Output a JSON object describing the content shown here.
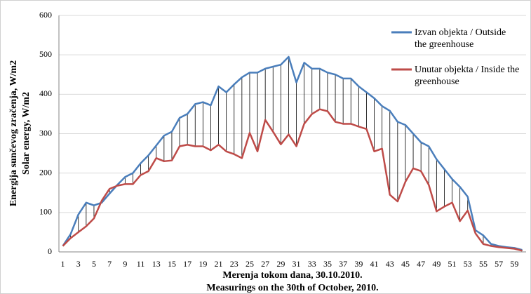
{
  "chart_data": {
    "type": "line",
    "y_label": [
      "Energija sunčevog zračenja, W/m2",
      "Solar energy, W/m2"
    ],
    "x_label": [
      "Merenja tokom dana, 30.10.2010.",
      "Measurings on the 30th of October, 2010."
    ],
    "categories": [
      "1",
      null,
      "3",
      null,
      "5",
      null,
      "7",
      null,
      "9",
      null,
      "11",
      null,
      "13",
      null,
      "15",
      null,
      "17",
      null,
      "19",
      null,
      "21",
      null,
      "23",
      null,
      "25",
      null,
      "27",
      null,
      "29",
      null,
      "31",
      null,
      "33",
      null,
      "35",
      null,
      "37",
      null,
      "39",
      null,
      "41",
      null,
      "43",
      null,
      "45",
      null,
      "47",
      null,
      "49",
      null,
      "51",
      null,
      "53",
      null,
      "55",
      null,
      "57",
      null,
      "59",
      null
    ],
    "series": [
      {
        "name": "Izvan objekta / Outside the greenhouse",
        "color": "#4a7ebb",
        "values": [
          15,
          45,
          95,
          125,
          118,
          125,
          148,
          170,
          190,
          200,
          225,
          245,
          270,
          295,
          305,
          340,
          350,
          375,
          380,
          372,
          420,
          405,
          425,
          443,
          455,
          455,
          465,
          470,
          475,
          495,
          430,
          480,
          465,
          465,
          455,
          450,
          440,
          440,
          420,
          405,
          390,
          370,
          358,
          330,
          322,
          300,
          278,
          268,
          235,
          210,
          185,
          165,
          140,
          55,
          42,
          20,
          15,
          12,
          10,
          5
        ]
      },
      {
        "name": "Unutar objekta / Inside the greenhouse",
        "color": "#be4b48",
        "values": [
          15,
          35,
          50,
          65,
          85,
          130,
          160,
          168,
          172,
          172,
          195,
          205,
          238,
          230,
          232,
          268,
          272,
          268,
          268,
          258,
          272,
          255,
          248,
          238,
          302,
          255,
          335,
          305,
          273,
          298,
          268,
          325,
          350,
          362,
          357,
          330,
          325,
          325,
          318,
          312,
          255,
          262,
          145,
          128,
          178,
          212,
          205,
          170,
          103,
          115,
          125,
          78,
          105,
          47,
          20,
          15,
          12,
          10,
          8,
          3
        ]
      }
    ],
    "ylim": [
      0,
      600
    ],
    "yticks": [
      0,
      100,
      200,
      300,
      400,
      500,
      600
    ],
    "grid": true
  }
}
